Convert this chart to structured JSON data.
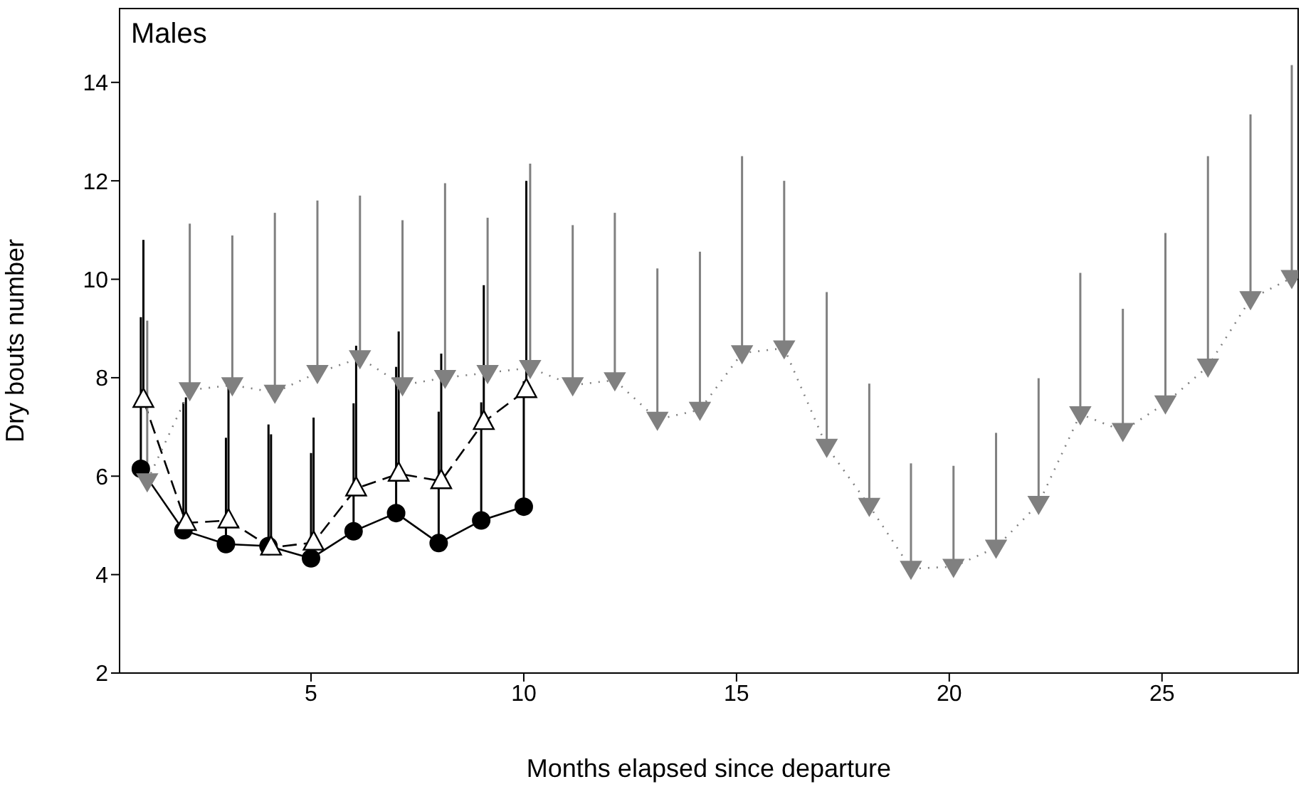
{
  "chart_data": {
    "type": "line",
    "title": "Males",
    "xlabel": "Months elapsed since departure",
    "ylabel": "Dry bouts number",
    "xlim": [
      0.5,
      28.2
    ],
    "xticks": [
      5,
      10,
      15,
      20,
      25
    ],
    "ylim": [
      2,
      15.5
    ],
    "yticks": [
      2,
      4,
      6,
      8,
      10,
      12,
      14
    ],
    "legend": false,
    "series": [
      {
        "color": "#000000",
        "marker": "circle",
        "line_style": "solid",
        "x": [
          1,
          2,
          3,
          4,
          5,
          6,
          7,
          8,
          9,
          10
        ],
        "values": [
          6.15,
          4.9,
          4.62,
          4.58,
          4.33,
          4.88,
          5.25,
          4.64,
          5.1,
          5.38
        ],
        "errors": [
          [
            6.15,
            9.23
          ],
          [
            4.9,
            7.5
          ],
          [
            4.62,
            6.78
          ],
          [
            4.58,
            7.05
          ],
          [
            4.33,
            6.47
          ],
          [
            4.88,
            7.48
          ],
          [
            5.25,
            8.22
          ],
          [
            4.64,
            7.31
          ],
          [
            5.1,
            7.5
          ],
          [
            5.38,
            7.93
          ]
        ]
      },
      {
        "color": "#000000",
        "marker": "triangle",
        "line_style": "dashed",
        "x": [
          1.06,
          2.06,
          3.06,
          4.06,
          5.06,
          6.06,
          7.06,
          8.06,
          9.06,
          10.06
        ],
        "values": [
          7.55,
          5.05,
          5.1,
          4.55,
          4.65,
          5.75,
          6.05,
          5.9,
          7.1,
          7.75
        ],
        "errors": [
          [
            7.55,
            10.8
          ],
          [
            5.05,
            7.6
          ],
          [
            5.1,
            7.9
          ],
          [
            4.55,
            6.85
          ],
          [
            4.65,
            7.19
          ],
          [
            5.75,
            8.65
          ],
          [
            6.05,
            8.94
          ],
          [
            5.9,
            8.49
          ],
          [
            7.1,
            9.88
          ],
          [
            7.75,
            12.0
          ]
        ]
      },
      {
        "color": "#808080",
        "marker": "triangle-down",
        "line_style": "dotted",
        "x": [
          1.15,
          2.15,
          3.15,
          4.15,
          5.15,
          6.15,
          7.15,
          8.15,
          9.15,
          10.15,
          11.15,
          12.14,
          13.14,
          14.14,
          15.13,
          16.12,
          17.12,
          18.12,
          19.1,
          20.1,
          21.1,
          22.1,
          23.08,
          24.08,
          25.08,
          26.08,
          27.08,
          28.05
        ],
        "values": [
          5.9,
          7.75,
          7.85,
          7.7,
          8.1,
          8.4,
          7.85,
          8.0,
          8.1,
          8.2,
          7.85,
          7.95,
          7.15,
          7.35,
          8.5,
          8.6,
          6.6,
          5.4,
          4.12,
          4.16,
          4.55,
          5.44,
          7.26,
          6.92,
          7.48,
          8.23,
          9.6,
          10.03
        ],
        "errors": [
          [
            5.9,
            9.16
          ],
          [
            7.75,
            11.13
          ],
          [
            7.85,
            10.89
          ],
          [
            7.7,
            11.35
          ],
          [
            8.1,
            11.6
          ],
          [
            8.4,
            11.7
          ],
          [
            7.85,
            11.2
          ],
          [
            8.0,
            11.95
          ],
          [
            8.1,
            11.25
          ],
          [
            8.2,
            12.35
          ],
          [
            7.85,
            11.1
          ],
          [
            7.95,
            11.35
          ],
          [
            7.15,
            10.22
          ],
          [
            7.35,
            10.56
          ],
          [
            8.5,
            12.5
          ],
          [
            8.6,
            12.0
          ],
          [
            6.6,
            9.74
          ],
          [
            5.4,
            7.88
          ],
          [
            4.12,
            6.26
          ],
          [
            4.16,
            6.21
          ],
          [
            4.55,
            6.88
          ],
          [
            5.44,
            7.99
          ],
          [
            7.26,
            10.13
          ],
          [
            6.92,
            9.4
          ],
          [
            7.48,
            10.94
          ],
          [
            8.23,
            12.5
          ],
          [
            9.6,
            13.35
          ],
          [
            10.03,
            14.35
          ]
        ]
      }
    ]
  }
}
